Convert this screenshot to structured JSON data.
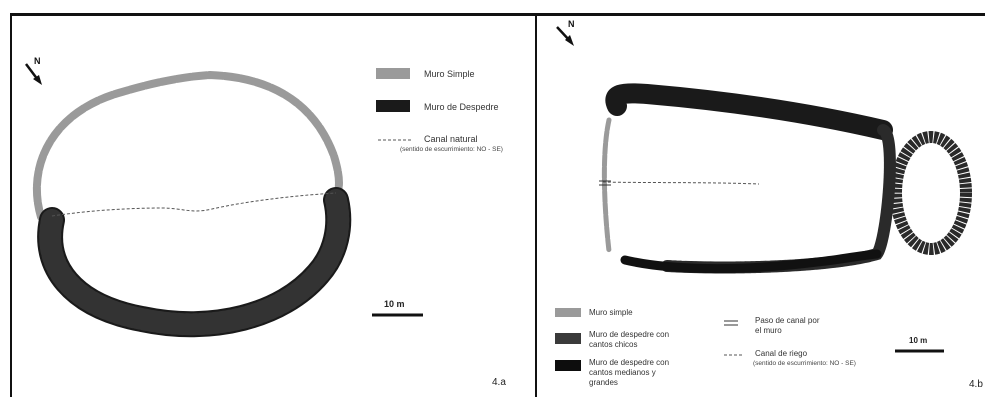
{
  "panel_a": {
    "north": "N",
    "legend": {
      "simple": "Muro Simple",
      "despedre": "Muro de Despedre",
      "canal": "Canal natural",
      "canal_note": "(sentido de escurrimiento: NO - SE)"
    },
    "scale": "10 m",
    "label": "4.a"
  },
  "panel_b": {
    "north": "N",
    "legend": {
      "simple": "Muro simple",
      "chicos": [
        "Muro de despedre con",
        "cantos chicos"
      ],
      "grandes": [
        "Muro de despedre con",
        "cantos medianos y",
        "grandes"
      ],
      "paso": [
        "Paso de canal por",
        "el muro"
      ],
      "canal": "Canal de riego",
      "canal_note": "(sentido de escurrimiento: NO - SE)"
    },
    "scale": "10 m",
    "label": "4.b"
  },
  "colors": {
    "muro_simple": "#9a9a9a",
    "despedre": "#1a1a1a",
    "despedre_chicos": "#3a3a3a",
    "canal": "#555555"
  }
}
